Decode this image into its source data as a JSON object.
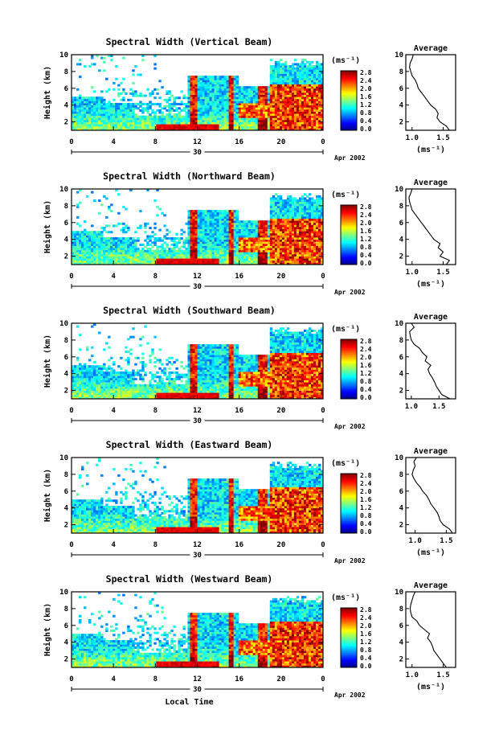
{
  "chart_data": [
    {
      "type": "heatmap",
      "title": "Spectral Width (Vertical Beam)",
      "ylabel": "Height (km)",
      "x_ticks": [
        "0",
        "4",
        "8",
        "12",
        "16",
        "20",
        "0"
      ],
      "y_ticks": [
        "2",
        "4",
        "6",
        "8",
        "10"
      ],
      "xlim": [
        0,
        24
      ],
      "ylim": [
        1,
        10
      ],
      "date_day": "30",
      "date_label": "Apr 2002",
      "colorbar": {
        "unit": "(ms⁻¹)",
        "ticks": [
          "2.8",
          "2.4",
          "2.0",
          "1.6",
          "1.2",
          "0.8",
          "0.4",
          "0.0"
        ],
        "range": [
          0,
          2.8
        ]
      },
      "profile": {
        "title": "Average",
        "xlabel": "(ms⁻¹)",
        "x_ticks": [
          "1.0",
          "1.5"
        ],
        "xlim": [
          0.9,
          1.7
        ],
        "heights": [
          1,
          1.5,
          2,
          2.5,
          3,
          3.5,
          4,
          4.5,
          5,
          5.5,
          6,
          6.5,
          7,
          7.5,
          8,
          8.5,
          9,
          9.5,
          10
        ],
        "values": [
          1.6,
          1.55,
          1.45,
          1.4,
          1.42,
          1.38,
          1.3,
          1.25,
          1.2,
          1.15,
          1.1,
          1.08,
          1.05,
          1.0,
          0.98,
          0.96,
          0.97,
          1.0,
          1.02
        ]
      }
    },
    {
      "type": "heatmap",
      "title": "Spectral Width (Northward Beam)",
      "ylabel": "Height (km)",
      "x_ticks": [
        "0",
        "4",
        "8",
        "12",
        "16",
        "20",
        "0"
      ],
      "y_ticks": [
        "2",
        "4",
        "6",
        "8",
        "10"
      ],
      "xlim": [
        0,
        24
      ],
      "ylim": [
        1,
        10
      ],
      "date_day": "30",
      "date_label": "Apr 2002",
      "colorbar": {
        "unit": "(ms⁻¹)",
        "ticks": [
          "2.8",
          "2.4",
          "2.0",
          "1.6",
          "1.2",
          "0.8",
          "0.4",
          "0.0"
        ],
        "range": [
          0,
          2.8
        ]
      },
      "profile": {
        "title": "Average",
        "xlabel": "(ms⁻¹)",
        "x_ticks": [
          "1.0",
          "1.5"
        ],
        "xlim": [
          0.9,
          1.7
        ],
        "heights": [
          1,
          1.5,
          2,
          2.5,
          3,
          3.5,
          4,
          4.5,
          5,
          5.5,
          6,
          6.5,
          7,
          7.5,
          8,
          8.5,
          9,
          9.5,
          10
        ],
        "values": [
          1.55,
          1.6,
          1.45,
          1.5,
          1.42,
          1.45,
          1.35,
          1.3,
          1.25,
          1.2,
          1.15,
          1.1,
          1.05,
          1.0,
          0.98,
          0.96,
          0.95,
          0.98,
          1.0
        ]
      }
    },
    {
      "type": "heatmap",
      "title": "Spectral Width (Southward Beam)",
      "ylabel": "Height (km)",
      "x_ticks": [
        "0",
        "4",
        "8",
        "12",
        "16",
        "20",
        "0"
      ],
      "y_ticks": [
        "2",
        "4",
        "6",
        "8",
        "10"
      ],
      "xlim": [
        0,
        24
      ],
      "ylim": [
        1,
        10
      ],
      "date_day": "30",
      "date_label": "Apr 2002",
      "colorbar": {
        "unit": "(ms⁻¹)",
        "ticks": [
          "2.8",
          "2.4",
          "2.0",
          "1.6",
          "1.2",
          "0.8",
          "0.4",
          "0.0"
        ],
        "range": [
          0,
          2.8
        ]
      },
      "profile": {
        "title": "Average",
        "xlabel": "",
        "x_ticks": [
          "1.0",
          "1.5"
        ],
        "xlim": [
          0.9,
          1.8
        ],
        "heights": [
          1,
          1.5,
          2,
          2.5,
          3,
          3.5,
          4,
          4.5,
          5,
          5.5,
          6,
          6.5,
          7,
          7.5,
          8,
          8.5,
          9,
          9.5,
          10
        ],
        "values": [
          1.7,
          1.55,
          1.5,
          1.45,
          1.42,
          1.38,
          1.33,
          1.3,
          1.35,
          1.25,
          1.28,
          1.2,
          1.15,
          1.05,
          1.0,
          0.98,
          0.97,
          1.05,
          1.0
        ]
      }
    },
    {
      "type": "heatmap",
      "title": "Spectral Width (Eastward Beam)",
      "ylabel": "Height (km)",
      "x_ticks": [
        "0",
        "4",
        "8",
        "12",
        "16",
        "20",
        "0"
      ],
      "y_ticks": [
        "2",
        "4",
        "6",
        "8",
        "10"
      ],
      "xlim": [
        0,
        24
      ],
      "ylim": [
        1,
        10
      ],
      "date_day": "30",
      "date_label": "Apr 2002",
      "colorbar": {
        "unit": "(ms⁻¹)",
        "ticks": [
          "2.8",
          "2.4",
          "2.0",
          "1.6",
          "1.2",
          "0.8",
          "0.4",
          "0.0"
        ],
        "range": [
          0,
          2.8
        ]
      },
      "profile": {
        "title": "Average",
        "xlabel": "(ms⁻¹)",
        "x_ticks": [
          "1.0",
          "1.5"
        ],
        "xlim": [
          0.85,
          1.65
        ],
        "heights": [
          1,
          1.5,
          2,
          2.5,
          3,
          3.5,
          4,
          4.5,
          5,
          5.5,
          6,
          6.5,
          7,
          7.5,
          8,
          8.5,
          9,
          9.5,
          10
        ],
        "values": [
          1.6,
          1.55,
          1.45,
          1.4,
          1.38,
          1.35,
          1.3,
          1.25,
          1.22,
          1.18,
          1.12,
          1.08,
          1.02,
          0.98,
          0.95,
          0.97,
          1.0,
          0.98,
          1.02
        ]
      }
    },
    {
      "type": "heatmap",
      "title": "Spectral Width (Westward Beam)",
      "ylabel": "Height (km)",
      "xlabel": "Local Time",
      "x_ticks": [
        "0",
        "4",
        "8",
        "12",
        "16",
        "20",
        "0"
      ],
      "y_ticks": [
        "2",
        "4",
        "6",
        "8",
        "10"
      ],
      "xlim": [
        0,
        24
      ],
      "ylim": [
        1,
        10
      ],
      "date_day": "30",
      "date_label": "Apr 2002",
      "colorbar": {
        "unit": "(ms⁻¹)",
        "ticks": [
          "2.8",
          "2.4",
          "2.0",
          "1.6",
          "1.2",
          "0.8",
          "0.4",
          "0.0"
        ],
        "range": [
          0,
          2.8
        ]
      },
      "profile": {
        "title": "Average",
        "xlabel": "(ms⁻¹)",
        "x_ticks": [
          "1.0",
          "1.5"
        ],
        "xlim": [
          0.9,
          1.7
        ],
        "heights": [
          1,
          1.5,
          2,
          2.5,
          3,
          3.5,
          4,
          4.5,
          5,
          5.5,
          6,
          6.5,
          7,
          7.5,
          8,
          8.5,
          9,
          9.5,
          10
        ],
        "values": [
          1.55,
          1.5,
          1.45,
          1.4,
          1.35,
          1.33,
          1.3,
          1.25,
          1.28,
          1.2,
          1.12,
          1.08,
          1.0,
          0.98,
          0.97,
          0.98,
          1.0,
          1.02,
          1.05
        ]
      }
    }
  ]
}
